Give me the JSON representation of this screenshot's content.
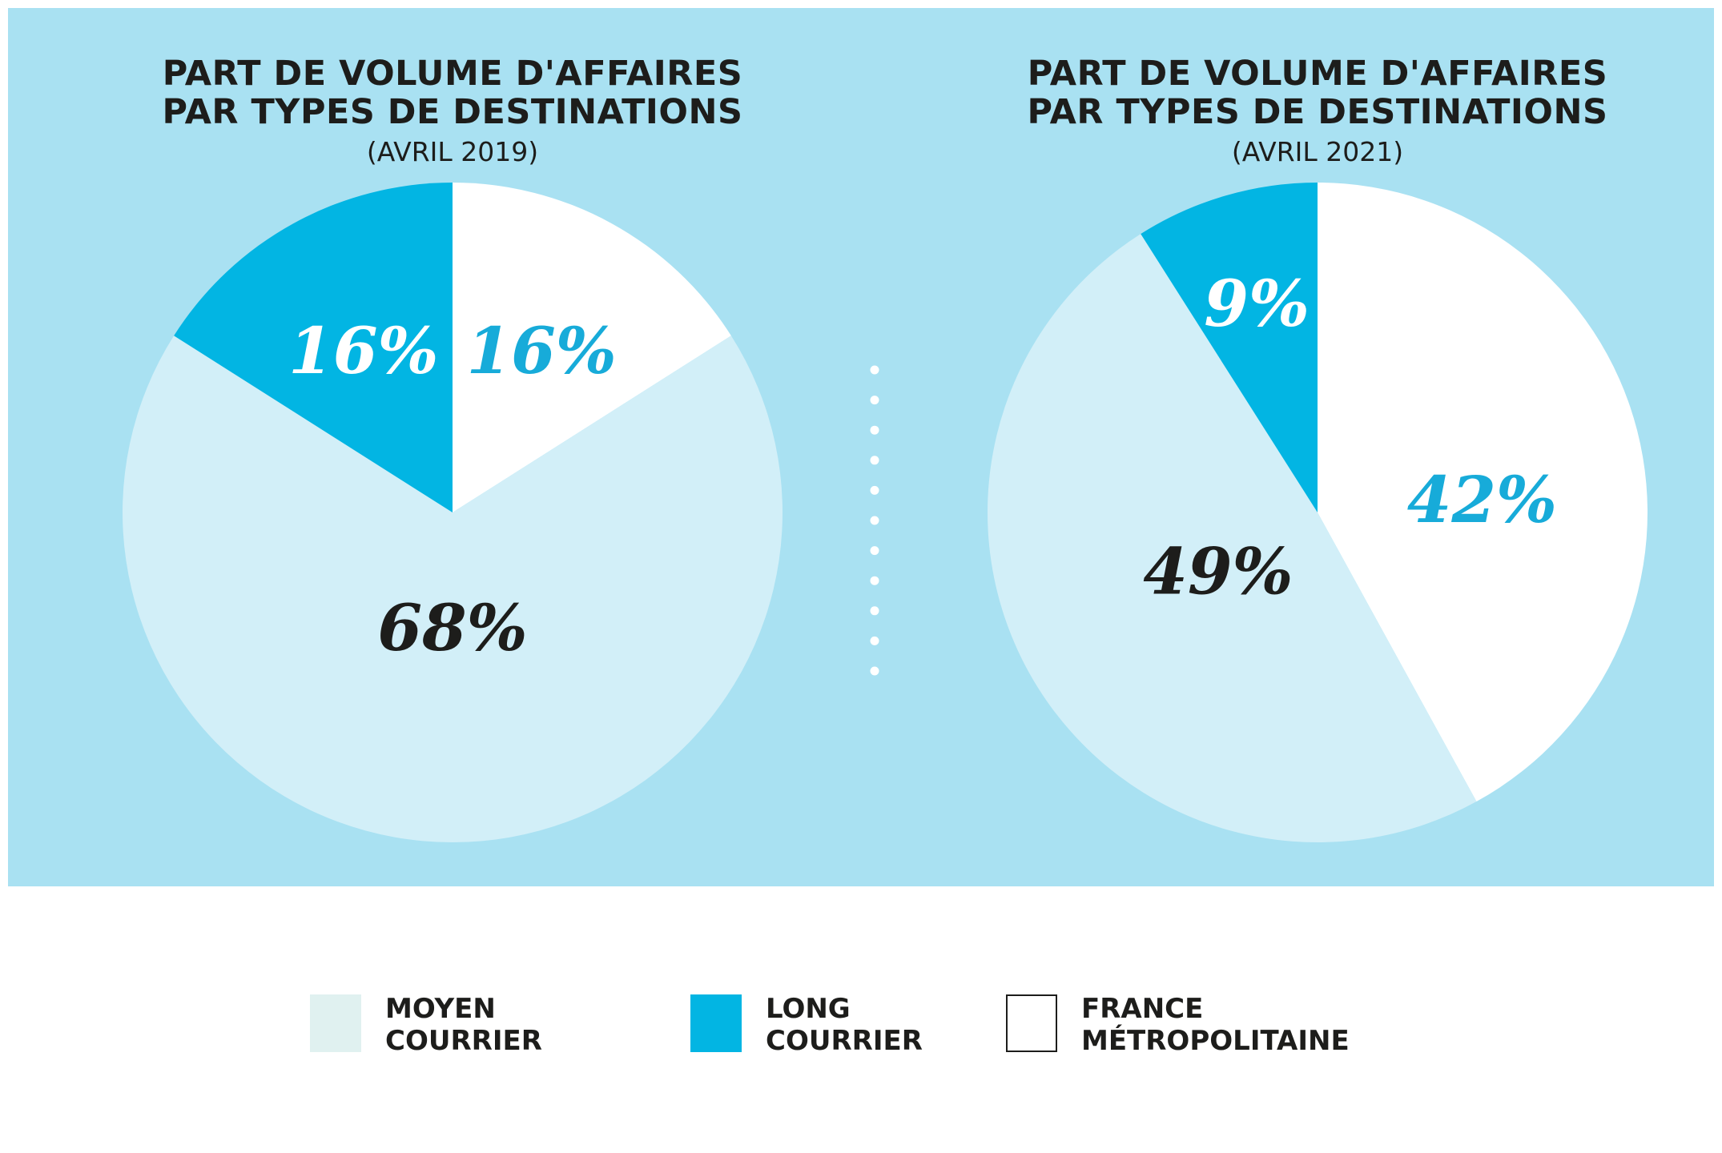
{
  "colors": {
    "background": "#a9e1f2",
    "moyen_courrier": "#d2eff8",
    "long_courrier": "#02b5e3",
    "france_metropolitaine": "#ffffff",
    "legend_moyen_swatch": "#e0f1f0",
    "dark_text": "#1d1d1b",
    "accent_text": "#17abd9",
    "divider_dot": "#ffffff"
  },
  "legend": [
    {
      "key": "moyen_courrier",
      "line1": "MOYEN",
      "line2": "COURRIER"
    },
    {
      "key": "long_courrier",
      "line1": "LONG",
      "line2": "COURRIER"
    },
    {
      "key": "france_metropolitaine",
      "line1": "FRANCE",
      "line2": "MÉTROPOLITAINE"
    }
  ],
  "chart_data": [
    {
      "type": "pie",
      "title_line1": "PART DE VOLUME D'AFFAIRES",
      "title_line2": "PAR TYPES DE DESTINATIONS",
      "subtitle": "(AVRIL 2019)",
      "slices": [
        {
          "name": "FRANCE MÉTROPOLITAINE",
          "value": 16,
          "label": "16%"
        },
        {
          "name": "MOYEN COURRIER",
          "value": 68,
          "label": "68%"
        },
        {
          "name": "LONG COURRIER",
          "value": 16,
          "label": "16%"
        }
      ]
    },
    {
      "type": "pie",
      "title_line1": "PART DE VOLUME D'AFFAIRES",
      "title_line2": "PAR TYPES DE DESTINATIONS",
      "subtitle": "(AVRIL 2021)",
      "slices": [
        {
          "name": "FRANCE MÉTROPOLITAINE",
          "value": 42,
          "label": "42%"
        },
        {
          "name": "MOYEN COURRIER",
          "value": 49,
          "label": "49%"
        },
        {
          "name": "LONG COURRIER",
          "value": 9,
          "label": "9%"
        }
      ]
    }
  ]
}
